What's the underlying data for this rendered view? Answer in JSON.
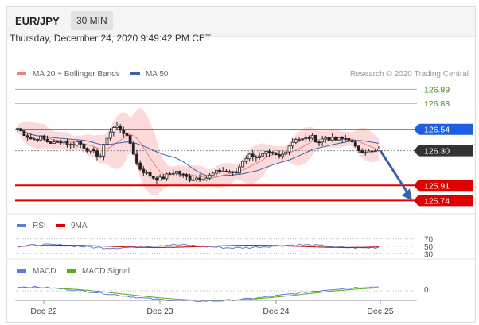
{
  "header": {
    "symbol": "EUR/JPY",
    "timeframe": "30 MIN"
  },
  "datetime": "Thursday, December 24, 2020 9:49:42 PM CET",
  "legend": {
    "ma20": "MA 20 + Bollinger Bands",
    "ma50": "MA 50",
    "research": "Research © 2020 Trading Central"
  },
  "colors": {
    "ma20": "#f08080",
    "ma50": "#3b62a8",
    "bands": "#fbd3d3",
    "resistance": "#90c56a",
    "support": "#e00000",
    "pivot": "#1f5ee0",
    "last": "#333333",
    "arrow": "#3b62a8",
    "candle": "#222222"
  },
  "chart_data": [
    {
      "type": "candlestick",
      "ylim": [
        125.6,
        127.1
      ],
      "x_ticks": [
        "Dec 22",
        "Dec 23",
        "Dec 24",
        "Dec 25"
      ],
      "levels": [
        {
          "value": "126.99",
          "kind": "resistance"
        },
        {
          "value": "126.83",
          "kind": "resistance"
        },
        {
          "value": "126.54",
          "kind": "pivot"
        },
        {
          "value": "126.30",
          "kind": "last"
        },
        {
          "value": "125.91",
          "kind": "support"
        },
        {
          "value": "125.74",
          "kind": "support"
        }
      ],
      "close_path": [
        126.55,
        126.48,
        126.42,
        126.45,
        126.4,
        126.38,
        126.42,
        126.36,
        126.4,
        126.33,
        126.28,
        126.24,
        126.48,
        126.58,
        126.52,
        126.38,
        126.12,
        126.05,
        126.0,
        125.98,
        126.03,
        126.07,
        126.02,
        125.98,
        126.0,
        125.99,
        126.04,
        126.08,
        126.06,
        126.04,
        126.2,
        126.26,
        126.22,
        126.27,
        126.25,
        126.23,
        126.35,
        126.44,
        126.42,
        126.46,
        126.4,
        126.45,
        126.42,
        126.43,
        126.44,
        126.32,
        126.3,
        126.28,
        126.3
      ],
      "forecast": {
        "target": "125.74"
      }
    },
    {
      "type": "line",
      "name": "RSI",
      "series_names": [
        "RSI",
        "9MA"
      ],
      "y_ticks": [
        "70",
        "50",
        "30"
      ],
      "ylim": [
        20,
        80
      ]
    },
    {
      "type": "line",
      "name": "MACD",
      "series_names": [
        "MACD",
        "MACD Signal"
      ],
      "y_ticks": [
        "0"
      ]
    }
  ]
}
